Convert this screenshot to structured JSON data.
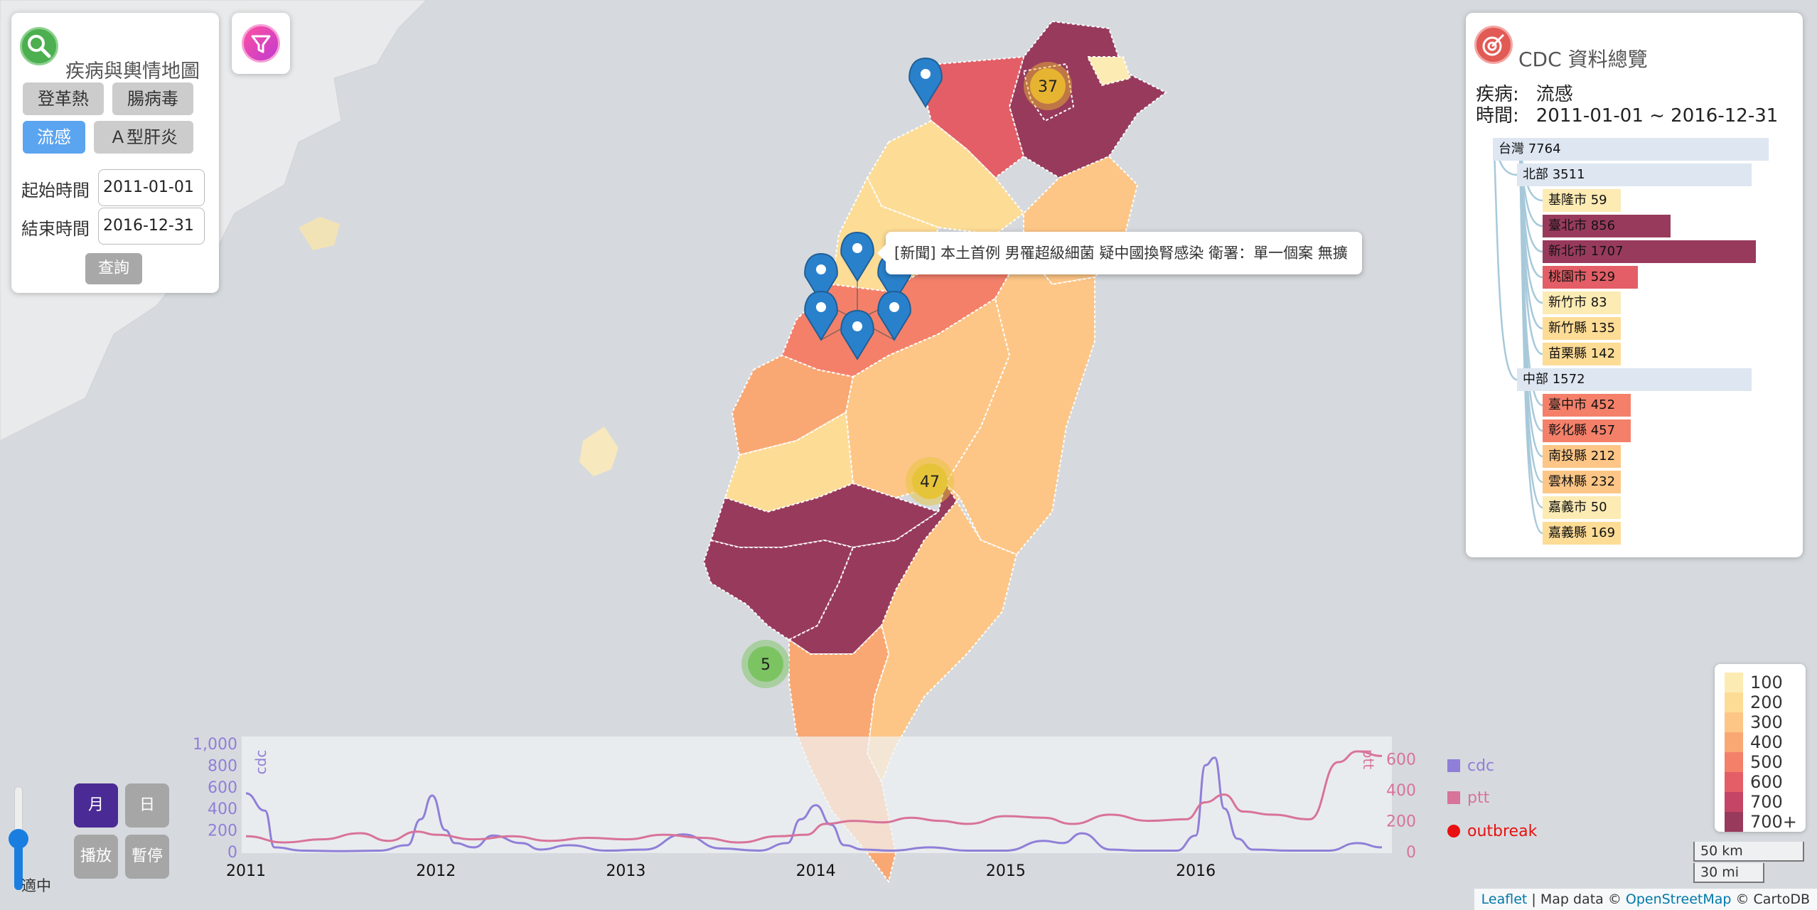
{
  "query_panel": {
    "title": "疾病與輿情地圖",
    "diseases": [
      {
        "label": "登革熱",
        "active": false
      },
      {
        "label": "腸病毒",
        "active": false
      },
      {
        "label": "流感",
        "active": true
      },
      {
        "label": "Ａ型肝炎",
        "active": false
      }
    ],
    "start_label": "起始時間",
    "start_value": "2011-01-01",
    "end_label": "結束時間",
    "end_value": "2016-12-31",
    "query_button": "查詢"
  },
  "cdc_panel": {
    "title": "CDC 資料總覽",
    "disease_label": "疾病:",
    "disease_value": "流感",
    "time_label": "時間:",
    "time_value": "2011-01-01 ~ 2016-12-31",
    "tree": [
      {
        "label": "台灣 7764",
        "level": 0,
        "value": 7764
      },
      {
        "label": "北部 3511",
        "level": 1,
        "value": 3511
      },
      {
        "label": "基隆市 59",
        "level": 2,
        "value": 59
      },
      {
        "label": "臺北市 856",
        "level": 2,
        "value": 856
      },
      {
        "label": "新北市 1707",
        "level": 2,
        "value": 1707
      },
      {
        "label": "桃園市 529",
        "level": 2,
        "value": 529
      },
      {
        "label": "新竹市 83",
        "level": 2,
        "value": 83
      },
      {
        "label": "新竹縣 135",
        "level": 2,
        "value": 135
      },
      {
        "label": "苗栗縣 142",
        "level": 2,
        "value": 142
      },
      {
        "label": "中部 1572",
        "level": 1,
        "value": 1572
      },
      {
        "label": "臺中市 452",
        "level": 2,
        "value": 452
      },
      {
        "label": "彰化縣 457",
        "level": 2,
        "value": 457
      },
      {
        "label": "南投縣 212",
        "level": 2,
        "value": 212
      },
      {
        "label": "雲林縣 232",
        "level": 2,
        "value": 232
      },
      {
        "label": "嘉義市 50",
        "level": 2,
        "value": 50
      },
      {
        "label": "嘉義縣 169",
        "level": 2,
        "value": 169
      }
    ]
  },
  "popup": {
    "text": "[新聞] 本土首例 男罹超級細菌 疑中國換腎感染 衛署：單一個案 無擴"
  },
  "clusters": [
    {
      "count": "37",
      "color": "#e6b431"
    },
    {
      "count": "47",
      "color": "#e6c43a"
    },
    {
      "count": "5",
      "color": "#7cc462"
    }
  ],
  "legend": {
    "items": [
      {
        "label": "100",
        "color": "#fdebb4"
      },
      {
        "label": "200",
        "color": "#fddc96"
      },
      {
        "label": "300",
        "color": "#fdc686"
      },
      {
        "label": "400",
        "color": "#f9a873"
      },
      {
        "label": "500",
        "color": "#f4806a"
      },
      {
        "label": "600",
        "color": "#e35e66"
      },
      {
        "label": "700",
        "color": "#c54566"
      },
      {
        "label": "700+",
        "color": "#983a5c"
      }
    ]
  },
  "scale": {
    "km": "50 km",
    "mi": "30 mi"
  },
  "controls": {
    "month": "月",
    "day": "日",
    "play": "播放",
    "pause": "暫停",
    "speed_label": "適中"
  },
  "chart_data": {
    "type": "line",
    "x_ticks": [
      "2011",
      "2012",
      "2013",
      "2014",
      "2015",
      "2016"
    ],
    "xlim": [
      2011,
      2016.98
    ],
    "left_axis": {
      "label": "cdc",
      "ylim": [
        0,
        1000
      ],
      "ticks": [
        "0",
        "200",
        "400",
        "600",
        "800",
        "1,000"
      ]
    },
    "right_axis": {
      "label": "ptt",
      "ylim": [
        0,
        700
      ],
      "ticks": [
        "0",
        "200",
        "400",
        "600"
      ]
    },
    "legend": [
      "cdc",
      "ptt",
      "outbreak"
    ],
    "colors": {
      "cdc": "#8f7fd8",
      "ptt": "#d8739a",
      "outbreak": "#e81010"
    },
    "series": [
      {
        "name": "cdc",
        "axis": "left",
        "x": [
          2011.0,
          2011.1,
          2011.15,
          2011.3,
          2011.5,
          2011.7,
          2011.85,
          2011.92,
          2011.98,
          2012.05,
          2012.1,
          2012.2,
          2012.3,
          2012.45,
          2012.55,
          2012.7,
          2012.9,
          2013.1,
          2013.3,
          2013.5,
          2013.7,
          2013.85,
          2013.92,
          2014.0,
          2014.08,
          2014.15,
          2014.25,
          2014.4,
          2014.6,
          2014.8,
          2015.0,
          2015.2,
          2015.3,
          2015.4,
          2015.55,
          2015.7,
          2015.9,
          2016.0,
          2016.05,
          2016.1,
          2016.15,
          2016.22,
          2016.3,
          2016.5,
          2016.7,
          2016.85,
          2016.98
        ],
        "y": [
          540,
          380,
          40,
          10,
          5,
          10,
          60,
          300,
          520,
          200,
          80,
          40,
          150,
          80,
          20,
          60,
          10,
          20,
          160,
          30,
          10,
          80,
          300,
          430,
          250,
          60,
          20,
          10,
          40,
          10,
          10,
          100,
          80,
          170,
          20,
          10,
          10,
          150,
          800,
          870,
          400,
          120,
          20,
          10,
          10,
          80,
          40
        ]
      },
      {
        "name": "ptt",
        "axis": "right",
        "x": [
          2011.0,
          2011.2,
          2011.4,
          2011.6,
          2011.75,
          2011.9,
          2012.0,
          2012.2,
          2012.4,
          2012.6,
          2012.8,
          2013.0,
          2013.2,
          2013.4,
          2013.6,
          2013.8,
          2013.95,
          2014.05,
          2014.2,
          2014.35,
          2014.5,
          2014.65,
          2014.8,
          2015.0,
          2015.2,
          2015.35,
          2015.55,
          2015.75,
          2015.95,
          2016.05,
          2016.15,
          2016.25,
          2016.4,
          2016.6,
          2016.75,
          2016.85,
          2016.98
        ],
        "y": [
          100,
          60,
          80,
          120,
          70,
          130,
          110,
          80,
          100,
          70,
          90,
          80,
          110,
          90,
          60,
          100,
          110,
          180,
          200,
          190,
          220,
          200,
          180,
          230,
          220,
          180,
          240,
          200,
          210,
          320,
          370,
          260,
          240,
          210,
          580,
          650,
          620
        ]
      }
    ]
  },
  "attribution": {
    "leaflet": "Leaflet",
    "sep": " | Map data © ",
    "osm": "OpenStreetMap",
    "carto": " © CartoDB"
  }
}
